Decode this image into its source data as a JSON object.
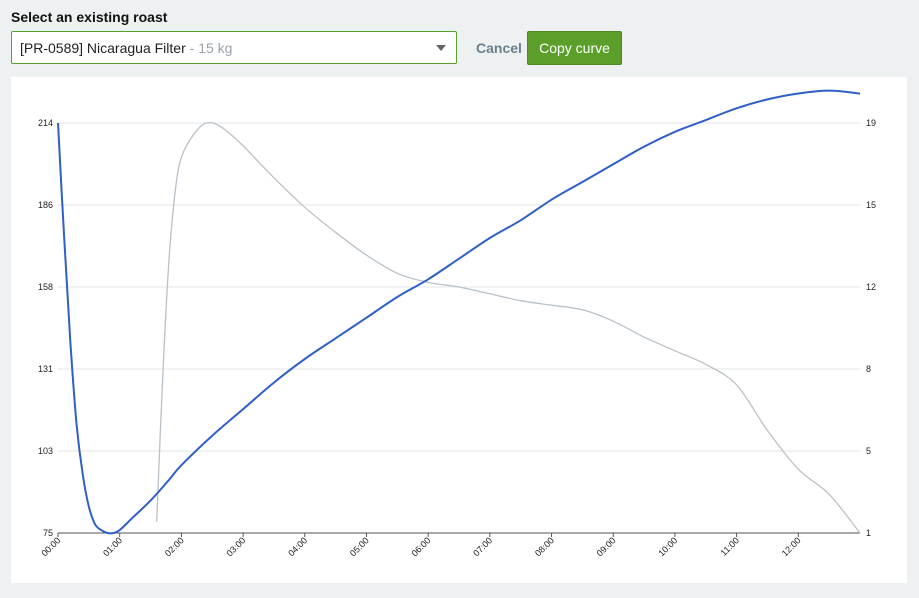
{
  "header": {
    "title": "Select an existing roast"
  },
  "roast_select": {
    "selected_label": "[PR-0589] Nicaragua Filter",
    "selected_weight": " - 15 kg"
  },
  "actions": {
    "cancel_label": "Cancel",
    "copy_label": "Copy curve"
  },
  "chart_data": {
    "type": "line",
    "x_ticks": [
      "00:00",
      "01:00",
      "02:00",
      "03:00",
      "04:00",
      "05:00",
      "06:00",
      "07:00",
      "08:00",
      "09:00",
      "10:00",
      "11:00",
      "12:00"
    ],
    "y_left_ticks": [
      "214",
      "186",
      "158",
      "131",
      "103",
      "75"
    ],
    "y_right_ticks": [
      "19",
      "15",
      "12",
      "8",
      "5",
      "1"
    ],
    "y_left_range": [
      75,
      214
    ],
    "y_right_range": [
      1,
      19
    ],
    "x_range_minutes": [
      0,
      13
    ],
    "grid": true,
    "colors": {
      "temperature": "#2f5fc7",
      "rate_of_rise": "#b9c2c9",
      "grid": "#e3e6e8"
    },
    "series": [
      {
        "axis": "left",
        "x": [
          0,
          0.1,
          0.2,
          0.3,
          0.4,
          0.5,
          0.6,
          0.7,
          0.8,
          0.9,
          1.0,
          1.2,
          1.5,
          1.8,
          2.0,
          2.5,
          3.0,
          3.5,
          4.0,
          4.5,
          5.0,
          5.5,
          6.0,
          6.5,
          7.0,
          7.5,
          8.0,
          8.5,
          9.0,
          9.5,
          10.0,
          10.5,
          11.0,
          11.5,
          12.0,
          12.5,
          13.0
        ],
        "y": [
          214,
          175,
          140,
          112,
          95,
          84,
          78,
          76,
          75,
          75,
          76,
          80,
          86,
          93,
          98,
          108,
          117,
          126,
          134,
          141,
          148,
          155,
          161,
          168,
          175,
          181,
          188,
          194,
          200,
          206,
          211,
          215,
          219,
          222,
          224,
          225,
          224
        ]
      },
      {
        "axis": "right",
        "x": [
          1.6,
          1.7,
          1.8,
          1.9,
          2.0,
          2.2,
          2.4,
          2.6,
          2.8,
          3.0,
          3.5,
          4.0,
          4.5,
          5.0,
          5.5,
          6.0,
          6.5,
          7.0,
          7.5,
          8.0,
          8.5,
          9.0,
          9.5,
          10.0,
          10.5,
          11.0,
          11.5,
          12.0,
          12.5,
          13.0
        ],
        "y": [
          1.5,
          8.0,
          13.0,
          16.0,
          17.5,
          18.5,
          19.0,
          18.9,
          18.5,
          18.0,
          16.6,
          15.3,
          14.2,
          13.2,
          12.4,
          12.0,
          11.8,
          11.5,
          11.2,
          11.0,
          10.8,
          10.3,
          9.6,
          9.0,
          8.4,
          7.5,
          5.5,
          3.8,
          2.7,
          1.0
        ]
      }
    ]
  }
}
